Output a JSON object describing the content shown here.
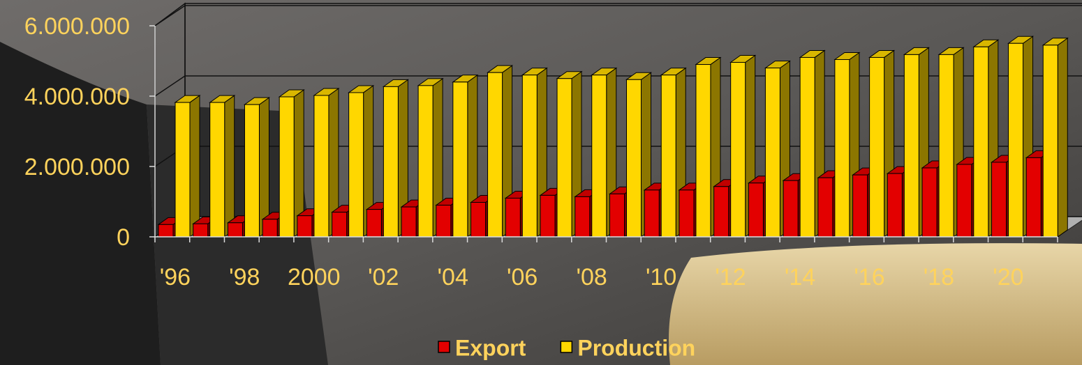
{
  "chart_data": {
    "type": "bar3d",
    "categories": [
      "'96",
      null,
      "'98",
      null,
      "2000",
      null,
      "'02",
      null,
      "'04",
      null,
      "'06",
      null,
      "'08",
      null,
      "'10",
      null,
      "'12",
      null,
      "'14",
      null,
      "'16",
      null,
      "'18",
      null,
      "'20",
      null
    ],
    "series": [
      {
        "name": "Export",
        "color": "#e30000",
        "values": [
          350000,
          370000,
          400000,
          500000,
          600000,
          700000,
          780000,
          850000,
          900000,
          980000,
          1100000,
          1180000,
          1140000,
          1220000,
          1330000,
          1330000,
          1430000,
          1530000,
          1600000,
          1680000,
          1760000,
          1800000,
          1960000,
          2060000,
          2120000,
          2250000
        ]
      },
      {
        "name": "Production",
        "color": "#ffd700",
        "values": [
          3820000,
          3820000,
          3760000,
          3980000,
          4020000,
          4100000,
          4270000,
          4300000,
          4400000,
          4670000,
          4600000,
          4500000,
          4600000,
          4470000,
          4600000,
          4900000,
          4960000,
          4800000,
          5100000,
          5040000,
          5100000,
          5180000,
          5180000,
          5400000,
          5500000,
          5450000
        ]
      }
    ],
    "ylim": [
      0,
      6000000
    ],
    "yticks": [
      0,
      {
        "value": 2000000,
        "label": "2.000.000"
      },
      {
        "value": 4000000,
        "label": "4.000.000"
      },
      {
        "value": 6000000,
        "label": "6.000.000"
      }
    ],
    "grid": true,
    "legend": "bottom"
  }
}
